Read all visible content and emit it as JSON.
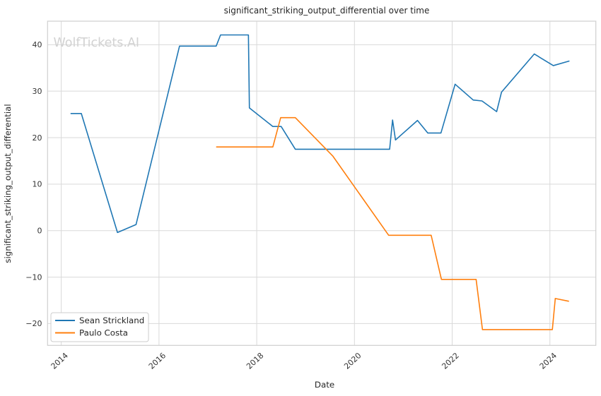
{
  "watermark": "WolfTickets.AI",
  "chart_data": {
    "type": "line",
    "title": "significant_striking_output_differential over time",
    "xlabel": "Date",
    "ylabel": "significant_striking_output_differential",
    "xlim": [
      2013.72,
      2024.94
    ],
    "ylim": [
      -24.69,
      45.06
    ],
    "x_ticks": [
      2014,
      2016,
      2018,
      2020,
      2022,
      2024
    ],
    "y_ticks": [
      -20,
      -10,
      0,
      10,
      20,
      30,
      40
    ],
    "grid": true,
    "legend_position": "lower-left",
    "series": [
      {
        "name": "Sean Strickland",
        "color": "#1f77b4",
        "points": [
          [
            2014.19,
            25.2
          ],
          [
            2014.41,
            25.2
          ],
          [
            2015.15,
            -0.4
          ],
          [
            2015.53,
            1.3
          ],
          [
            2016.42,
            39.7
          ],
          [
            2017.17,
            39.7
          ],
          [
            2017.26,
            42.1
          ],
          [
            2017.83,
            42.1
          ],
          [
            2017.85,
            26.4
          ],
          [
            2018.33,
            22.4
          ],
          [
            2018.5,
            22.4
          ],
          [
            2018.79,
            17.5
          ],
          [
            2020.72,
            17.5
          ],
          [
            2020.78,
            23.8
          ],
          [
            2020.84,
            19.5
          ],
          [
            2021.29,
            23.7
          ],
          [
            2021.5,
            21.0
          ],
          [
            2021.77,
            21.0
          ],
          [
            2022.06,
            31.5
          ],
          [
            2022.43,
            28.1
          ],
          [
            2022.61,
            27.9
          ],
          [
            2022.91,
            25.6
          ],
          [
            2023.01,
            29.8
          ],
          [
            2023.68,
            38.0
          ],
          [
            2024.07,
            35.5
          ],
          [
            2024.4,
            36.5
          ]
        ]
      },
      {
        "name": "Paulo Costa",
        "color": "#ff7f0e",
        "points": [
          [
            2017.17,
            18.0
          ],
          [
            2018.33,
            18.0
          ],
          [
            2018.49,
            24.3
          ],
          [
            2018.79,
            24.3
          ],
          [
            2019.56,
            16.0
          ],
          [
            2020.7,
            -1.0
          ],
          [
            2021.57,
            -1.0
          ],
          [
            2021.78,
            -10.5
          ],
          [
            2022.49,
            -10.5
          ],
          [
            2022.62,
            -21.3
          ],
          [
            2024.05,
            -21.3
          ],
          [
            2024.11,
            -14.6
          ],
          [
            2024.39,
            -15.2
          ]
        ]
      }
    ]
  }
}
